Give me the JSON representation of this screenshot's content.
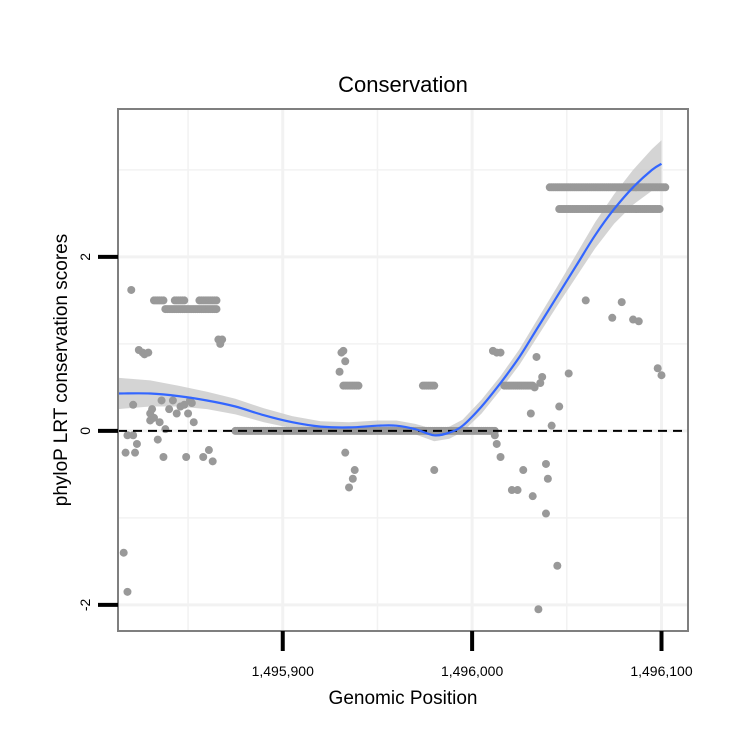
{
  "chart_data": {
    "type": "scatter",
    "title": "Conservation",
    "xlabel": "Genomic Position",
    "ylabel": "phyloP LRT conservation scores",
    "xlim": [
      1495813,
      1496114
    ],
    "ylim": [
      -2.3,
      3.7
    ],
    "xticks": [
      1495900,
      1496000,
      1496100
    ],
    "xtick_labels": [
      "1,495,900",
      "1,496,000",
      "1,496,100"
    ],
    "yticks": [
      -2,
      0,
      2
    ],
    "ytick_labels": [
      "-2",
      "0",
      "2"
    ],
    "grid": true,
    "legend": "none",
    "colors": {
      "points": "#999999",
      "smooth": "#3366ff",
      "band": "#cccccc",
      "reference": "#000000",
      "panel_border": "#7f7f7f",
      "grid": "#f2f2f2"
    },
    "reference_line": {
      "y": 0,
      "style": "dashed"
    },
    "point_rows": [
      {
        "y": 2.8,
        "x_from": 1496041,
        "x_to": 1496102
      },
      {
        "y": 2.55,
        "x_from": 1496046,
        "x_to": 1496099
      },
      {
        "y": 1.5,
        "x_from": 1495832,
        "x_to": 1495837
      },
      {
        "y": 1.5,
        "x_from": 1495843,
        "x_to": 1495848
      },
      {
        "y": 1.5,
        "x_from": 1495856,
        "x_to": 1495865
      },
      {
        "y": 1.4,
        "x_from": 1495838,
        "x_to": 1495865
      },
      {
        "y": 0.52,
        "x_from": 1495932,
        "x_to": 1495940
      },
      {
        "y": 0.52,
        "x_from": 1495974,
        "x_to": 1495980
      },
      {
        "y": 0.52,
        "x_from": 1496017,
        "x_to": 1496032
      },
      {
        "y": 0.0,
        "x_from": 1495875,
        "x_to": 1496012
      }
    ],
    "points": [
      [
        1495816,
        -1.4
      ],
      [
        1495818,
        -1.85
      ],
      [
        1495817,
        -0.25
      ],
      [
        1495818,
        -0.05
      ],
      [
        1495820,
        1.62
      ],
      [
        1495821,
        0.3
      ],
      [
        1495822,
        -0.25
      ],
      [
        1495821,
        -0.05
      ],
      [
        1495823,
        -0.15
      ],
      [
        1495824,
        0.93
      ],
      [
        1495826,
        0.9
      ],
      [
        1495827,
        0.88
      ],
      [
        1495829,
        0.9
      ],
      [
        1495830,
        0.2
      ],
      [
        1495830,
        0.12
      ],
      [
        1495831,
        0.25
      ],
      [
        1495832,
        0.15
      ],
      [
        1495834,
        -0.1
      ],
      [
        1495835,
        0.1
      ],
      [
        1495836,
        0.35
      ],
      [
        1495837,
        -0.3
      ],
      [
        1495838,
        0.02
      ],
      [
        1495840,
        0.25
      ],
      [
        1495842,
        0.35
      ],
      [
        1495844,
        0.2
      ],
      [
        1495846,
        0.28
      ],
      [
        1495848,
        0.3
      ],
      [
        1495849,
        -0.3
      ],
      [
        1495850,
        0.2
      ],
      [
        1495851,
        0.35
      ],
      [
        1495852,
        0.32
      ],
      [
        1495853,
        0.1
      ],
      [
        1495858,
        -0.3
      ],
      [
        1495861,
        -0.22
      ],
      [
        1495863,
        -0.35
      ],
      [
        1495866,
        1.05
      ],
      [
        1495867,
        1.0
      ],
      [
        1495868,
        1.05
      ],
      [
        1495930,
        0.68
      ],
      [
        1495931,
        0.9
      ],
      [
        1495932,
        0.92
      ],
      [
        1495933,
        0.8
      ],
      [
        1495933,
        -0.25
      ],
      [
        1495935,
        -0.65
      ],
      [
        1495937,
        -0.55
      ],
      [
        1495938,
        -0.45
      ],
      [
        1495980,
        -0.45
      ],
      [
        1496011,
        0.92
      ],
      [
        1496013,
        0.9
      ],
      [
        1496015,
        0.9
      ],
      [
        1496012,
        -0.05
      ],
      [
        1496013,
        -0.15
      ],
      [
        1496015,
        -0.3
      ],
      [
        1496021,
        -0.68
      ],
      [
        1496024,
        -0.68
      ],
      [
        1496027,
        -0.45
      ],
      [
        1496031,
        0.2
      ],
      [
        1496032,
        -0.75
      ],
      [
        1496033,
        0.5
      ],
      [
        1496034,
        0.85
      ],
      [
        1496035,
        -2.05
      ],
      [
        1496036,
        0.55
      ],
      [
        1496037,
        0.62
      ],
      [
        1496039,
        -0.38
      ],
      [
        1496039,
        -0.95
      ],
      [
        1496040,
        -0.55
      ],
      [
        1496042,
        0.06
      ],
      [
        1496045,
        -1.55
      ],
      [
        1496046,
        0.28
      ],
      [
        1496051,
        0.66
      ],
      [
        1496060,
        1.5
      ],
      [
        1496074,
        1.3
      ],
      [
        1496079,
        1.48
      ],
      [
        1496085,
        1.28
      ],
      [
        1496088,
        1.26
      ],
      [
        1496098,
        0.72
      ],
      [
        1496100,
        0.64
      ]
    ],
    "smooth": [
      [
        1495813,
        0.43
      ],
      [
        1495830,
        0.43
      ],
      [
        1495845,
        0.4
      ],
      [
        1495860,
        0.35
      ],
      [
        1495875,
        0.28
      ],
      [
        1495890,
        0.18
      ],
      [
        1495905,
        0.1
      ],
      [
        1495920,
        0.05
      ],
      [
        1495935,
        0.04
      ],
      [
        1495950,
        0.06
      ],
      [
        1495960,
        0.06
      ],
      [
        1495970,
        0.02
      ],
      [
        1495980,
        -0.05
      ],
      [
        1495988,
        -0.02
      ],
      [
        1495995,
        0.06
      ],
      [
        1496005,
        0.28
      ],
      [
        1496015,
        0.55
      ],
      [
        1496025,
        0.85
      ],
      [
        1496035,
        1.2
      ],
      [
        1496045,
        1.55
      ],
      [
        1496055,
        1.9
      ],
      [
        1496065,
        2.25
      ],
      [
        1496075,
        2.55
      ],
      [
        1496085,
        2.8
      ],
      [
        1496095,
        3.0
      ],
      [
        1496100,
        3.07
      ]
    ],
    "band_halfwidth": [
      0.18,
      0.15,
      0.12,
      0.1,
      0.09,
      0.08,
      0.07,
      0.06,
      0.06,
      0.06,
      0.06,
      0.06,
      0.07,
      0.07,
      0.07,
      0.08,
      0.08,
      0.09,
      0.1,
      0.11,
      0.13,
      0.15,
      0.17,
      0.2,
      0.24,
      0.27
    ]
  }
}
